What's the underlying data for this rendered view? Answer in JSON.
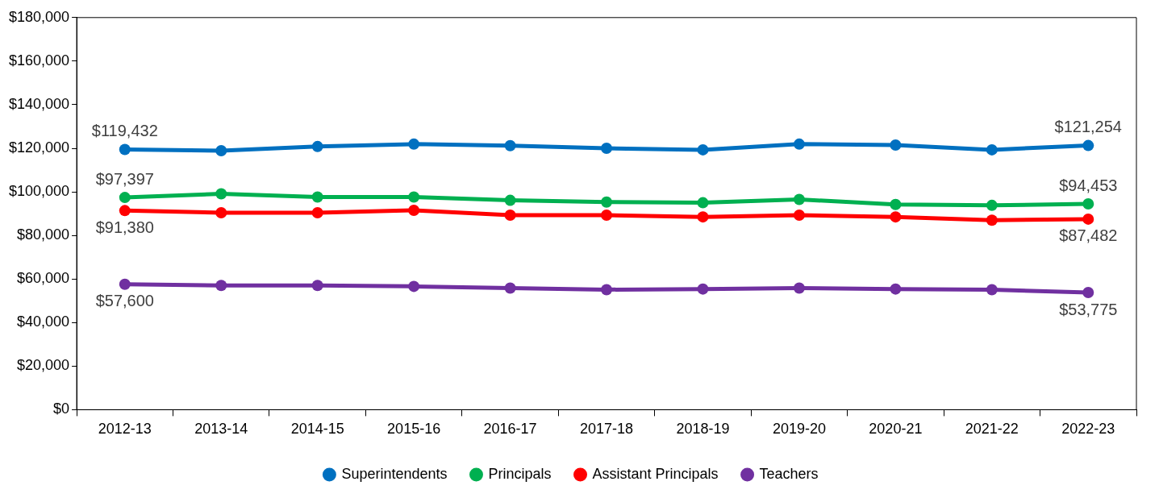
{
  "chart_data": {
    "type": "line",
    "categories": [
      "2012-13",
      "2013-14",
      "2014-15",
      "2015-16",
      "2016-17",
      "2017-18",
      "2018-19",
      "2019-20",
      "2020-21",
      "2021-22",
      "2022-23"
    ],
    "series": [
      {
        "name": "Superintendents",
        "color": "#0070c0",
        "values": [
          119432,
          118900,
          120800,
          121900,
          121200,
          120000,
          119300,
          121900,
          121500,
          119300,
          121254
        ],
        "value_labels": [
          "$119,432",
          null,
          null,
          null,
          null,
          null,
          null,
          null,
          null,
          null,
          "$121,254"
        ]
      },
      {
        "name": "Principals",
        "color": "#00b050",
        "values": [
          97397,
          99100,
          97600,
          97600,
          96100,
          95300,
          95000,
          96500,
          94200,
          93800,
          94453
        ],
        "value_labels": [
          "$97,397",
          null,
          null,
          null,
          null,
          null,
          null,
          null,
          null,
          null,
          "$94,453"
        ]
      },
      {
        "name": "Assistant Principals",
        "color": "#ff0000",
        "values": [
          91380,
          90400,
          90400,
          91500,
          89300,
          89300,
          88500,
          89300,
          88500,
          87000,
          87482
        ],
        "value_labels": [
          "$91,380",
          null,
          null,
          null,
          null,
          null,
          null,
          null,
          null,
          null,
          "$87,482"
        ]
      },
      {
        "name": "Teachers",
        "color": "#7030a0",
        "values": [
          57600,
          57000,
          57000,
          56600,
          55800,
          55100,
          55400,
          55800,
          55400,
          55100,
          53775
        ],
        "value_labels": [
          "$57,600",
          null,
          null,
          null,
          null,
          null,
          null,
          null,
          null,
          null,
          "$53,775"
        ]
      }
    ],
    "ylim": [
      0,
      180000
    ],
    "yticks": [
      {
        "value": 0,
        "label": "$0"
      },
      {
        "value": 20000,
        "label": "$20,000"
      },
      {
        "value": 40000,
        "label": "$40,000"
      },
      {
        "value": 60000,
        "label": "$60,000"
      },
      {
        "value": 80000,
        "label": "$80,000"
      },
      {
        "value": 100000,
        "label": "$100,000"
      },
      {
        "value": 120000,
        "label": "$120,000"
      },
      {
        "value": 140000,
        "label": "$140,000"
      },
      {
        "value": 160000,
        "label": "$160,000"
      },
      {
        "value": 180000,
        "label": "$180,000"
      }
    ],
    "grid": false,
    "legend": "bottom",
    "marker": "circle",
    "line_style": "solid"
  }
}
